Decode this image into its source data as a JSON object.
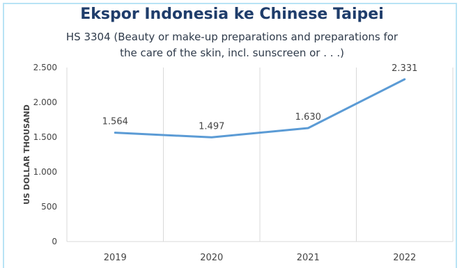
{
  "chart_data": {
    "type": "line",
    "title": "Ekspor Indonesia ke Chinese Taipei",
    "subtitle_lines": [
      "HS 3304 (Beauty or make-up preparations and preparations for",
      "the care of the skin, incl. sunscreen or . . .)"
    ],
    "xlabel": "",
    "ylabel": "US DOLLAR THOUSAND",
    "categories": [
      "2019",
      "2020",
      "2021",
      "2022"
    ],
    "series": [
      {
        "values": [
          1564,
          1497,
          1630,
          2331
        ]
      }
    ],
    "data_labels": [
      "1.564",
      "1.497",
      "1.630",
      "2.331"
    ],
    "ylim": [
      0,
      2500
    ],
    "yticks": [
      0,
      500,
      1000,
      1500,
      2000,
      2500
    ],
    "ytick_labels": [
      "0",
      "500",
      "1.000",
      "1.500",
      "2.000",
      "2.500"
    ],
    "grid": "vertical",
    "legend": "none",
    "colors": {
      "line": "#5b9bd5",
      "title": "#1f3d6b",
      "axis_text": "#444444",
      "grid": "#d9d9d9",
      "border": "#b8e3f5"
    }
  }
}
